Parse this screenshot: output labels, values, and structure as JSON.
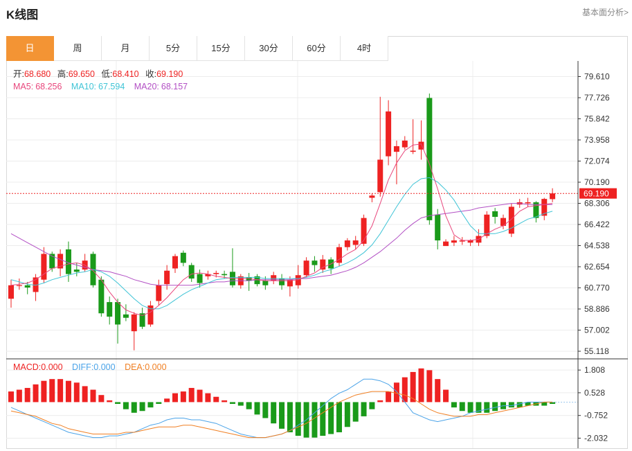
{
  "header": {
    "title": "K线图",
    "fund_link": "基本面分析>"
  },
  "tabs": [
    {
      "label": "日",
      "active": true
    },
    {
      "label": "周",
      "active": false
    },
    {
      "label": "月",
      "active": false
    },
    {
      "label": "5分",
      "active": false
    },
    {
      "label": "15分",
      "active": false
    },
    {
      "label": "30分",
      "active": false
    },
    {
      "label": "60分",
      "active": false
    },
    {
      "label": "4时",
      "active": false
    }
  ],
  "ohlc_info": {
    "open_label": "开:",
    "open": "68.680",
    "high_label": "高:",
    "high": "69.650",
    "low_label": "低:",
    "low": "68.410",
    "close_label": "收:",
    "close": "69.190"
  },
  "ma_info": {
    "ma5_label": "MA5:",
    "ma5": "68.256",
    "ma10_label": "MA10:",
    "ma10": "67.594",
    "ma20_label": "MA20:",
    "ma20": "68.157"
  },
  "macd_info": {
    "macd_label": "MACD:",
    "macd": "0.000",
    "diff_label": "DIFF:",
    "diff": "0.000",
    "dea_label": "DEA:",
    "dea": "0.000"
  },
  "current_price_tag": "69.190",
  "colors": {
    "up": "#ee2222",
    "down": "#1a9a1a",
    "accent": "#f39434",
    "ma5": "#e8467c",
    "ma10": "#3fc4d6",
    "ma20": "#b24fc4",
    "diff": "#4aa3e8",
    "dea": "#f07f22",
    "price_tag": "#ee2222"
  },
  "chart_data": {
    "type": "candlestick",
    "price_axis_ticks": [
      "79.610",
      "77.726",
      "75.842",
      "73.958",
      "72.074",
      "70.190",
      "68.306",
      "66.422",
      "64.538",
      "62.654",
      "60.770",
      "58.886",
      "57.002",
      "55.118"
    ],
    "ylim": [
      54.5,
      81.0
    ],
    "macd_axis_ticks": [
      "1.808",
      "0.528",
      "-0.752",
      "-2.032"
    ],
    "macd_ylim": [
      -2.6,
      2.4
    ],
    "candles": [
      [
        59.8,
        61.0,
        61.5,
        59.0
      ],
      [
        61.0,
        61.0,
        61.6,
        60.6
      ],
      [
        61.0,
        60.8,
        61.3,
        60.2
      ],
      [
        60.4,
        61.7,
        62.0,
        59.6
      ],
      [
        61.5,
        63.8,
        64.4,
        61.2
      ],
      [
        63.8,
        62.5,
        64.0,
        62.2
      ],
      [
        62.5,
        63.8,
        64.2,
        61.8
      ],
      [
        64.2,
        62.0,
        64.9,
        61.3
      ],
      [
        62.4,
        62.2,
        63.0,
        61.8
      ],
      [
        62.4,
        63.2,
        63.8,
        62.2
      ],
      [
        63.8,
        61.0,
        64.0,
        60.8
      ],
      [
        61.5,
        58.5,
        61.8,
        58.2
      ],
      [
        59.5,
        58.2,
        60.0,
        57.5
      ],
      [
        59.5,
        57.5,
        59.8,
        55.8
      ],
      [
        58.4,
        58.1,
        59.3,
        57.8
      ],
      [
        56.9,
        58.4,
        58.6,
        55.2
      ],
      [
        58.5,
        57.3,
        59.0,
        57.1
      ],
      [
        57.5,
        59.2,
        59.6,
        57.3
      ],
      [
        59.6,
        61.0,
        61.5,
        59.2
      ],
      [
        61.1,
        62.3,
        62.8,
        60.6
      ],
      [
        62.5,
        63.6,
        63.8,
        62.1
      ],
      [
        63.9,
        63.0,
        64.1,
        62.7
      ],
      [
        62.8,
        61.6,
        63.0,
        61.3
      ],
      [
        62.0,
        61.2,
        62.4,
        60.8
      ],
      [
        61.8,
        62.0,
        62.3,
        61.5
      ],
      [
        62.0,
        62.1,
        62.3,
        61.7
      ],
      [
        62.0,
        61.9,
        62.3,
        61.6
      ],
      [
        62.2,
        61.0,
        64.3,
        60.8
      ],
      [
        61.0,
        61.8,
        62.0,
        60.7
      ],
      [
        61.7,
        61.4,
        62.1,
        60.5
      ],
      [
        61.8,
        61.1,
        62.0,
        60.9
      ],
      [
        61.4,
        61.0,
        61.8,
        60.6
      ],
      [
        61.4,
        61.9,
        62.2,
        61.1
      ],
      [
        61.6,
        61.0,
        62.0,
        60.6
      ],
      [
        60.9,
        61.5,
        61.8,
        60.0
      ],
      [
        61.0,
        61.9,
        62.8,
        60.7
      ],
      [
        61.9,
        63.2,
        63.5,
        61.7
      ],
      [
        63.2,
        62.8,
        63.6,
        62.2
      ],
      [
        62.4,
        63.3,
        63.7,
        62.1
      ],
      [
        63.3,
        62.5,
        63.5,
        62.0
      ],
      [
        63.0,
        64.4,
        64.7,
        62.7
      ],
      [
        64.4,
        65.0,
        65.2,
        64.1
      ],
      [
        64.6,
        65.0,
        65.4,
        64.2
      ],
      [
        64.7,
        67.0,
        67.3,
        64.5
      ],
      [
        68.8,
        69.0,
        69.2,
        68.4
      ],
      [
        69.3,
        72.2,
        77.8,
        68.9
      ],
      [
        72.5,
        76.5,
        77.5,
        71.7
      ],
      [
        72.9,
        73.4,
        73.9,
        70.0
      ],
      [
        73.3,
        73.9,
        74.3,
        73.1
      ],
      [
        72.9,
        73.0,
        75.8,
        72.7
      ],
      [
        73.1,
        73.8,
        75.7,
        72.2
      ],
      [
        77.7,
        66.8,
        78.1,
        66.4
      ],
      [
        67.3,
        65.0,
        67.8,
        64.2
      ],
      [
        64.5,
        64.9,
        65.1,
        64.6
      ],
      [
        64.8,
        65.0,
        65.4,
        64.5
      ],
      [
        64.9,
        65.0,
        65.3,
        64.6
      ],
      [
        64.8,
        65.0,
        65.1,
        64.5
      ],
      [
        64.8,
        65.4,
        66.0,
        64.5
      ],
      [
        65.4,
        67.3,
        67.6,
        65.2
      ],
      [
        67.6,
        67.1,
        67.9,
        66.5
      ],
      [
        66.3,
        67.0,
        67.3,
        66.0
      ],
      [
        65.6,
        68.0,
        68.3,
        65.3
      ],
      [
        68.2,
        68.4,
        68.7,
        67.9
      ],
      [
        68.3,
        68.4,
        68.8,
        68.0
      ],
      [
        68.4,
        67.0,
        68.5,
        66.6
      ],
      [
        67.2,
        68.7,
        68.8,
        66.8
      ],
      [
        68.68,
        69.19,
        69.65,
        68.41
      ]
    ],
    "ma5": [
      61.0,
      61.1,
      61.2,
      61.5,
      62.0,
      62.5,
      62.7,
      62.9,
      63.0,
      62.8,
      62.3,
      61.5,
      60.4,
      59.5,
      58.8,
      58.5,
      58.3,
      58.6,
      59.2,
      59.9,
      60.7,
      61.5,
      62.0,
      62.1,
      62.0,
      61.8,
      61.7,
      61.6,
      61.6,
      61.6,
      61.5,
      61.4,
      61.4,
      61.4,
      61.4,
      61.5,
      61.8,
      62.1,
      62.6,
      62.9,
      63.3,
      63.8,
      64.2,
      65.0,
      66.3,
      68.3,
      70.4,
      71.9,
      73.0,
      73.5,
      73.6,
      71.8,
      69.6,
      67.2,
      65.5,
      65.0,
      65.0,
      65.1,
      65.6,
      66.0,
      66.3,
      66.9,
      67.6,
      68.0,
      68.1,
      68.2,
      68.3
    ],
    "ma10": [
      61.5,
      61.3,
      61.1,
      61.0,
      61.2,
      61.5,
      61.7,
      61.9,
      62.1,
      62.2,
      62.4,
      62.2,
      61.8,
      61.2,
      60.5,
      59.8,
      59.2,
      58.9,
      58.9,
      59.2,
      59.7,
      60.2,
      60.6,
      60.9,
      61.2,
      61.5,
      61.6,
      61.7,
      61.7,
      61.7,
      61.7,
      61.6,
      61.6,
      61.6,
      61.6,
      61.6,
      61.7,
      61.9,
      62.2,
      62.4,
      62.7,
      63.0,
      63.4,
      63.9,
      64.6,
      65.6,
      66.8,
      68.0,
      69.1,
      70.0,
      70.5,
      70.6,
      70.2,
      69.5,
      68.6,
      67.4,
      66.3,
      65.6,
      65.6,
      65.6,
      65.8,
      66.1,
      66.5,
      66.9,
      67.1,
      67.4,
      67.6
    ],
    "ma20": [
      65.6,
      65.2,
      64.8,
      64.4,
      64.0,
      63.6,
      63.3,
      63.0,
      62.8,
      62.6,
      62.4,
      62.3,
      62.2,
      62.0,
      61.8,
      61.5,
      61.3,
      61.1,
      61.0,
      61.0,
      61.0,
      61.0,
      61.0,
      61.1,
      61.2,
      61.3,
      61.3,
      61.4,
      61.4,
      61.4,
      61.5,
      61.5,
      61.5,
      61.5,
      61.5,
      61.6,
      61.6,
      61.7,
      61.8,
      61.9,
      62.1,
      62.3,
      62.6,
      63.0,
      63.5,
      64.0,
      64.6,
      65.2,
      65.9,
      66.5,
      67.0,
      67.2,
      67.3,
      67.4,
      67.5,
      67.6,
      67.7,
      67.9,
      68.0,
      68.1,
      68.2,
      68.3,
      68.3,
      68.2,
      68.2,
      68.2,
      68.2
    ],
    "macd_hist": [
      0.6,
      0.7,
      0.8,
      1.0,
      1.2,
      1.3,
      1.3,
      1.2,
      1.1,
      0.9,
      0.7,
      0.4,
      0.1,
      -0.1,
      -0.4,
      -0.6,
      -0.5,
      -0.3,
      -0.1,
      0.2,
      0.5,
      0.6,
      0.8,
      0.7,
      0.5,
      0.3,
      0.1,
      -0.1,
      -0.2,
      -0.4,
      -0.7,
      -0.9,
      -1.2,
      -1.5,
      -1.7,
      -1.9,
      -2.0,
      -2.0,
      -1.9,
      -1.8,
      -1.7,
      -1.4,
      -1.1,
      -0.8,
      -0.4,
      0.1,
      0.6,
      1.1,
      1.4,
      1.7,
      1.9,
      1.8,
      1.3,
      0.7,
      -0.3,
      -0.5,
      -0.6,
      -0.6,
      -0.6,
      -0.5,
      -0.4,
      -0.3,
      -0.3,
      -0.2,
      -0.2,
      -0.2,
      -0.1
    ],
    "diff": [
      -0.3,
      -0.5,
      -0.7,
      -0.9,
      -1.1,
      -1.3,
      -1.5,
      -1.7,
      -1.8,
      -1.9,
      -2.0,
      -2.0,
      -1.9,
      -1.9,
      -1.8,
      -1.7,
      -1.5,
      -1.3,
      -1.2,
      -1.0,
      -0.9,
      -0.9,
      -1.0,
      -1.0,
      -1.1,
      -1.2,
      -1.4,
      -1.6,
      -1.8,
      -1.9,
      -2.0,
      -2.0,
      -1.9,
      -1.8,
      -1.6,
      -1.3,
      -1.0,
      -0.6,
      -0.2,
      0.2,
      0.5,
      0.7,
      1.0,
      1.3,
      1.3,
      1.2,
      1.0,
      0.6,
      0.0,
      -0.6,
      -0.8,
      -1.0,
      -1.1,
      -1.0,
      -0.9,
      -0.8,
      -0.6,
      -0.5,
      -0.4,
      -0.3,
      -0.2,
      -0.2,
      -0.1,
      0.0,
      0.0,
      0.0,
      0.0
    ],
    "dea": [
      -0.5,
      -0.6,
      -0.7,
      -0.8,
      -1.0,
      -1.2,
      -1.3,
      -1.5,
      -1.6,
      -1.7,
      -1.8,
      -1.8,
      -1.8,
      -1.8,
      -1.7,
      -1.7,
      -1.6,
      -1.5,
      -1.4,
      -1.4,
      -1.4,
      -1.3,
      -1.3,
      -1.4,
      -1.5,
      -1.6,
      -1.7,
      -1.8,
      -1.9,
      -2.0,
      -2.0,
      -2.0,
      -1.9,
      -1.8,
      -1.6,
      -1.4,
      -1.2,
      -0.9,
      -0.6,
      -0.3,
      0.0,
      0.2,
      0.4,
      0.5,
      0.6,
      0.6,
      0.6,
      0.5,
      0.4,
      0.2,
      -0.1,
      -0.4,
      -0.6,
      -0.7,
      -0.8,
      -0.8,
      -0.8,
      -0.7,
      -0.7,
      -0.6,
      -0.5,
      -0.4,
      -0.3,
      -0.2,
      -0.1,
      0.0,
      0.0
    ]
  }
}
